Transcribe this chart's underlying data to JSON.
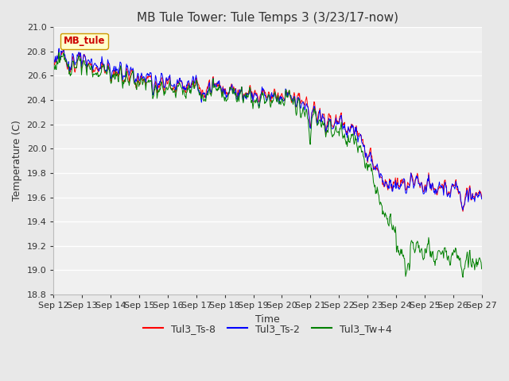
{
  "title": "MB Tule Tower: Tule Temps 3 (3/23/17-now)",
  "xlabel": "Time",
  "ylabel": "Temperature (C)",
  "ylim": [
    18.8,
    21.0
  ],
  "yticks": [
    18.8,
    19.0,
    19.2,
    19.4,
    19.6,
    19.8,
    20.0,
    20.2,
    20.4,
    20.6,
    20.8,
    21.0
  ],
  "xtick_labels": [
    "Sep 12",
    "Sep 13",
    "Sep 14",
    "Sep 15",
    "Sep 16",
    "Sep 17",
    "Sep 18",
    "Sep 19",
    "Sep 20",
    "Sep 21",
    "Sep 22",
    "Sep 23",
    "Sep 24",
    "Sep 25",
    "Sep 26",
    "Sep 27"
  ],
  "series_colors": [
    "red",
    "blue",
    "green"
  ],
  "series_labels": [
    "Tul3_Ts-8",
    "Tul3_Ts-2",
    "Tul3_Tw+4"
  ],
  "legend_box_label": "MB_tule",
  "legend_box_facecolor": "#ffffcc",
  "legend_box_edgecolor": "#cc9900",
  "legend_box_textcolor": "#cc0000",
  "background_color": "#e8e8e8",
  "plot_bg_color": "#f0f0f0",
  "grid_color": "white",
  "title_fontsize": 11,
  "axis_fontsize": 9,
  "tick_fontsize": 8
}
